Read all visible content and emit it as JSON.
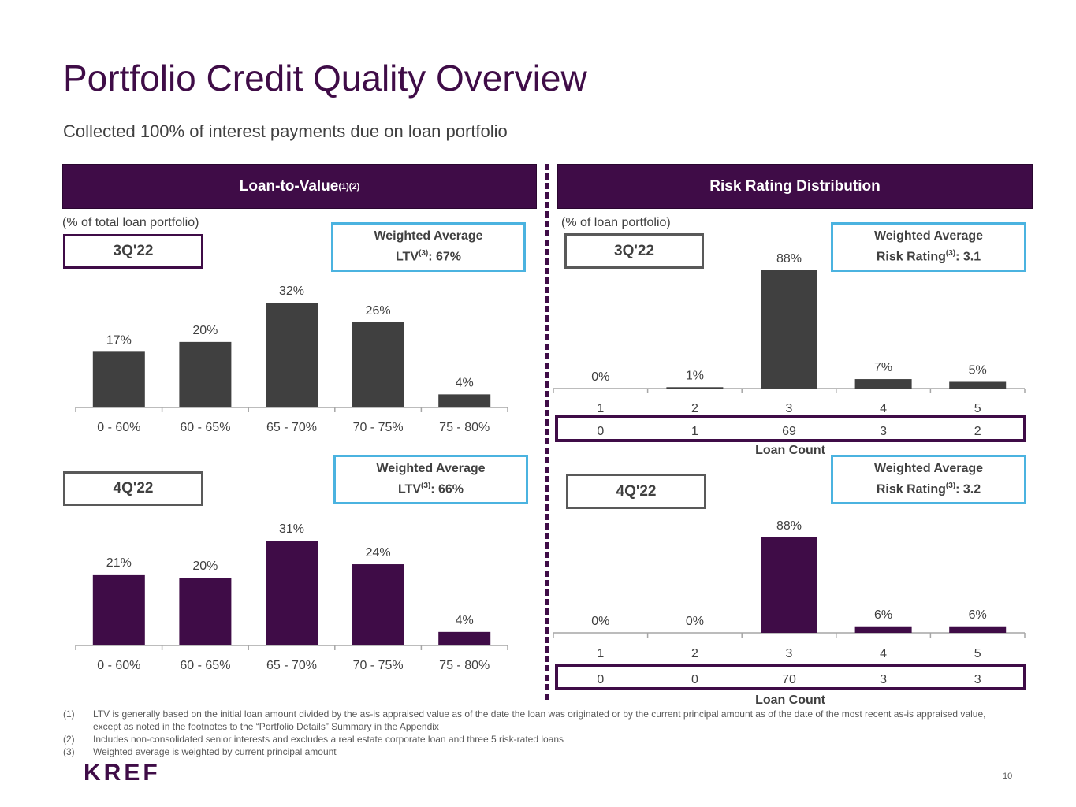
{
  "title": "Portfolio Credit Quality Overview",
  "subtitle": "Collected 100% of interest payments due on loan portfolio",
  "ltv_section": {
    "header": "Loan-to-Value",
    "header_sup": "(1)(2)",
    "note": "(% of total loan portfolio)"
  },
  "rr_section": {
    "header": "Risk Rating Distribution",
    "note": "(% of loan portfolio)"
  },
  "boxes": {
    "ltv_3q_period": "3Q'22",
    "ltv_4q_period": "4Q'22",
    "rr_3q_period": "3Q'22",
    "rr_4q_period": "4Q'22",
    "wa_label": "Weighted Average",
    "ltv_prefix": "LTV",
    "rating_prefix": "Risk Rating",
    "sup3": "(3)",
    "ltv_3q_value": ": 67%",
    "ltv_4q_value": ": 66%",
    "rr_3q_value": ": 3.1",
    "rr_4q_value": ": 3.2"
  },
  "loan_count_label": "Loan Count",
  "chart_data": [
    {
      "id": "ltv_3q",
      "type": "bar",
      "title": "Loan-to-Value 3Q'22",
      "categories": [
        "0 - 60%",
        "60 - 65%",
        "65 - 70%",
        "70 - 75%",
        "75 - 80%"
      ],
      "values": [
        17,
        20,
        32,
        26,
        4
      ],
      "labels": [
        "17%",
        "20%",
        "32%",
        "26%",
        "4%"
      ],
      "color": "#404040",
      "ylim": [
        0,
        32
      ]
    },
    {
      "id": "ltv_4q",
      "type": "bar",
      "title": "Loan-to-Value 4Q'22",
      "categories": [
        "0 - 60%",
        "60 - 65%",
        "65 - 70%",
        "70 - 75%",
        "75 - 80%"
      ],
      "values": [
        21,
        20,
        31,
        24,
        4
      ],
      "labels": [
        "21%",
        "20%",
        "31%",
        "24%",
        "4%"
      ],
      "color": "#3f0c47",
      "ylim": [
        0,
        31
      ]
    },
    {
      "id": "rr_3q",
      "type": "bar",
      "title": "Risk Rating Distribution 3Q'22",
      "categories": [
        "1",
        "2",
        "3",
        "4",
        "5"
      ],
      "values": [
        0,
        1,
        88,
        7,
        5
      ],
      "labels": [
        "0%",
        "1%",
        "88%",
        "7%",
        "5%"
      ],
      "loan_counts": [
        "0",
        "1",
        "69",
        "3",
        "2"
      ],
      "color": "#404040",
      "ylim": [
        0,
        88
      ]
    },
    {
      "id": "rr_4q",
      "type": "bar",
      "title": "Risk Rating Distribution 4Q'22",
      "categories": [
        "1",
        "2",
        "3",
        "4",
        "5"
      ],
      "values": [
        0,
        0,
        88,
        6,
        6
      ],
      "labels": [
        "0%",
        "0%",
        "88%",
        "6%",
        "6%"
      ],
      "loan_counts": [
        "0",
        "0",
        "70",
        "3",
        "3"
      ],
      "color": "#3f0c47",
      "ylim": [
        0,
        88
      ]
    }
  ],
  "footnotes": [
    {
      "num": "(1)",
      "text": "LTV is generally based on the initial loan amount divided by the as-is appraised value as of the date the loan was originated or by the current principal amount as of the date of the most recent as-is appraised value, except as noted in the footnotes to the “Portfolio Details” Summary in the Appendix"
    },
    {
      "num": "(2)",
      "text": "Includes non-consolidated senior interests and excludes a real estate corporate loan and three 5 risk-rated loans"
    },
    {
      "num": "(3)",
      "text": "Weighted average is weighted by current principal amount"
    }
  ],
  "logo_text": "KREF",
  "page_number": "10"
}
